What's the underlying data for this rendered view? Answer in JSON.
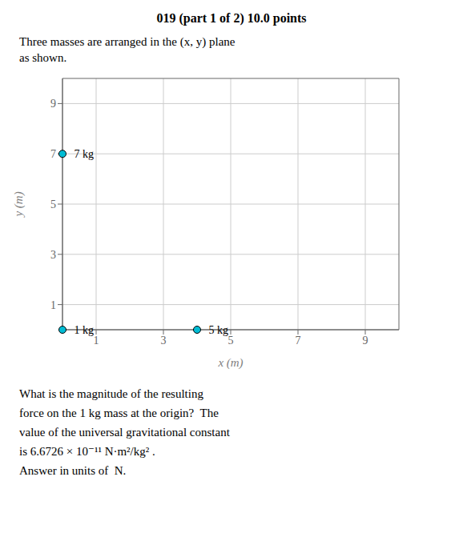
{
  "chart_data": {
    "type": "scatter",
    "title": "019 (part 1 of 2) 10.0 points",
    "subtitle": [
      "Three masses are arranged in the (x, y) plane",
      "as shown."
    ],
    "xlabel": "x (m)",
    "ylabel": "y (m)",
    "x": [
      0,
      4,
      0
    ],
    "values": [
      0,
      0,
      7
    ],
    "labels": [
      "1 kg",
      "5 kg",
      "7 kg"
    ],
    "color": "#00bcd4",
    "xlim": [
      0,
      10
    ],
    "ylim": [
      0,
      10
    ],
    "xticks": [
      1,
      3,
      5,
      7,
      9
    ],
    "yticks": [
      1,
      3,
      5,
      7,
      9
    ],
    "grid": true,
    "annotations": [
      "What is the magnitude of the resulting",
      "force on the 1 kg mass at the origin?  The",
      "value of the universal gravitational constant",
      "is 6.6726 × 10⁻¹¹ N·m²/kg² .",
      "Answer in units of  N."
    ]
  }
}
